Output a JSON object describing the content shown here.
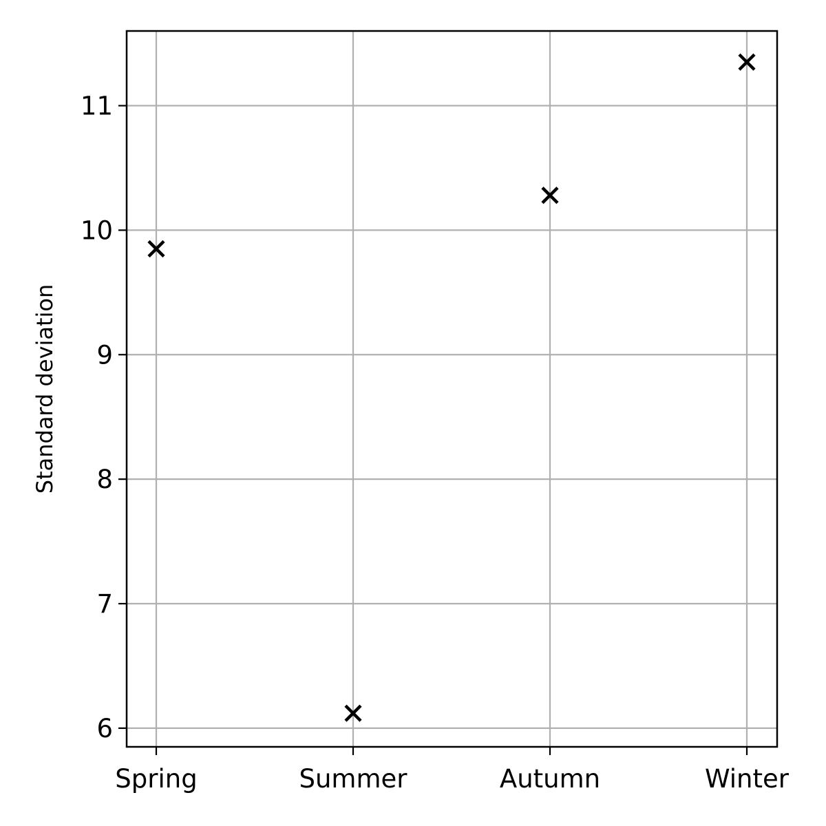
{
  "chart_data": {
    "type": "scatter",
    "categories": [
      "Spring",
      "Summer",
      "Autumn",
      "Winter"
    ],
    "values": [
      9.85,
      6.12,
      10.28,
      11.35
    ],
    "title": "",
    "xlabel": "",
    "ylabel": "Standard deviation",
    "ylim": [
      5.85,
      11.6
    ],
    "yticks": [
      6,
      7,
      8,
      9,
      10,
      11
    ],
    "grid": true,
    "marker": "x",
    "colors": {
      "marker": "#000000",
      "grid": "#b0b0b0",
      "axes": "#000000"
    }
  }
}
